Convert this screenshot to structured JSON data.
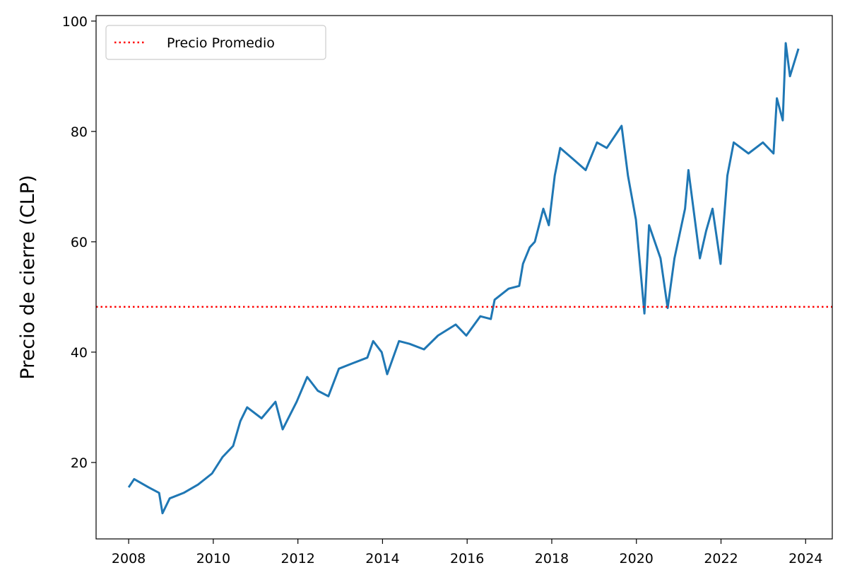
{
  "chart_data": {
    "type": "line",
    "ylabel": "Precio de cierre (CLP)",
    "x": [
      2008.0,
      2008.13,
      2008.47,
      2008.72,
      2008.8,
      2008.97,
      2009.3,
      2009.64,
      2009.97,
      2010.22,
      2010.47,
      2010.64,
      2010.8,
      2011.14,
      2011.47,
      2011.64,
      2011.97,
      2012.22,
      2012.47,
      2012.72,
      2012.97,
      2013.3,
      2013.64,
      2013.78,
      2013.98,
      2014.11,
      2014.39,
      2014.64,
      2014.98,
      2015.31,
      2015.73,
      2015.98,
      2016.31,
      2016.56,
      2016.65,
      2016.98,
      2017.23,
      2017.32,
      2017.48,
      2017.6,
      2017.8,
      2017.93,
      2018.07,
      2018.2,
      2018.5,
      2018.8,
      2019.07,
      2019.3,
      2019.65,
      2019.8,
      2019.99,
      2020.19,
      2020.3,
      2020.57,
      2020.74,
      2020.9,
      2021.15,
      2021.23,
      2021.5,
      2021.65,
      2021.8,
      2021.99,
      2022.15,
      2022.3,
      2022.65,
      2022.99,
      2023.24,
      2023.32,
      2023.46,
      2023.53,
      2023.63,
      2023.83
    ],
    "series": [
      {
        "color": "#1f77b4",
        "values": [
          15.5,
          17,
          15.5,
          14.5,
          10.8,
          13.5,
          14.5,
          16,
          18,
          21,
          23,
          27.5,
          30,
          28,
          31,
          26,
          31,
          35.5,
          33,
          32,
          37,
          38,
          39,
          42,
          40,
          36,
          42,
          41.5,
          40.5,
          43,
          45,
          43,
          46.5,
          46,
          49.5,
          51.5,
          52,
          56,
          59,
          60,
          66,
          63,
          72,
          77,
          75,
          73,
          78,
          77,
          81,
          72,
          64,
          47,
          63,
          57,
          48,
          57,
          66,
          73,
          57,
          62,
          66,
          56,
          72,
          78,
          76,
          78,
          76,
          86,
          82,
          96,
          90,
          95
        ]
      }
    ],
    "hline": {
      "value": 48.2,
      "label": "Precio Promedio",
      "color": "#ff0000"
    },
    "legend": "upper left",
    "xlim": [
      2007.23,
      2024.63
    ],
    "xticks": [
      2008,
      2010,
      2012,
      2014,
      2016,
      2018,
      2020,
      2022,
      2024
    ],
    "ylim": [
      6.15,
      101.0
    ],
    "yticks": [
      20,
      40,
      60,
      80,
      100
    ]
  }
}
